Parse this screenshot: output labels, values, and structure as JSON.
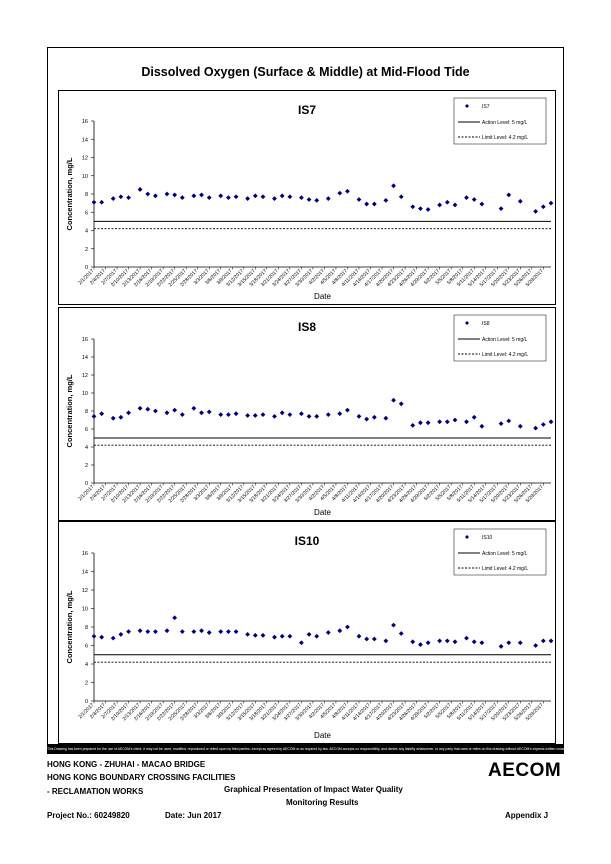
{
  "main_title": "Dissolved Oxygen (Surface & Middle) at Mid-Flood Tide",
  "disclaimer": "This Drawing has been prepared for the use of AECOM's client. It may not be used, modified, reproduced or relied upon by third parties, except as agreed by AECOM or as required by law. AECOM accepts no responsibility, and denies any liability whatsoever, to any party that uses or relies on this drawing without AECOM's express written consent.",
  "footer": {
    "line1": "HONG KONG - ZHUHAI - MACAO BRIDGE",
    "line2": "HONG KONG BOUNDARY CROSSING FACILITIES",
    "line3": "- RECLAMATION WORKS",
    "graph_title_1": "Graphical Presentation of Impact Water Quality",
    "graph_title_2": "Monitoring Results",
    "project": "Project No.: 60249820",
    "date": "Date: Jun 2017",
    "appendix": "Appendix J",
    "logo": "AECOM"
  },
  "colors": {
    "marker": "#00007f",
    "line": "#000000"
  },
  "x_tick_labels": [
    "2/1/2017",
    "2/4/2017",
    "2/7/2017",
    "2/10/2017",
    "2/13/2017",
    "2/16/2017",
    "2/19/2017",
    "2/22/2017",
    "2/25/2017",
    "2/28/2017",
    "3/3/2017",
    "3/6/2017",
    "3/9/2017",
    "3/12/2017",
    "3/15/2017",
    "3/18/2017",
    "3/21/2017",
    "3/24/2017",
    "3/27/2017",
    "3/30/2017",
    "4/2/2017",
    "4/5/2017",
    "4/8/2017",
    "4/11/2017",
    "4/14/2017",
    "4/17/2017",
    "4/20/2017",
    "4/23/2017",
    "4/26/2017",
    "4/29/2017",
    "5/2/2017",
    "5/5/2017",
    "5/8/2017",
    "5/11/2017",
    "5/14/2017",
    "5/17/2017",
    "5/20/2017",
    "5/23/2017",
    "5/26/2017",
    "5/29/2017"
  ],
  "chart_data": [
    {
      "type": "scatter",
      "title": "IS7",
      "xlabel": "Date",
      "ylabel": "Concentration, mg/L",
      "ylim": [
        0,
        16
      ],
      "yticks": [
        0,
        2,
        4,
        6,
        8,
        10,
        12,
        14,
        16
      ],
      "xlim": [
        "2017-02-01",
        "2017-05-31"
      ],
      "grid": false,
      "legend_position": "top-right",
      "legend": [
        "IS7",
        "Action Level: 5 mg/L",
        "Limit Level: 4.2 mg/L"
      ],
      "action_level": 5,
      "limit_level": 4.2,
      "series": [
        {
          "name": "IS7",
          "x": [
            "2017-02-01",
            "2017-02-03",
            "2017-02-06",
            "2017-02-08",
            "2017-02-10",
            "2017-02-13",
            "2017-02-15",
            "2017-02-17",
            "2017-02-20",
            "2017-02-22",
            "2017-02-24",
            "2017-02-27",
            "2017-03-01",
            "2017-03-03",
            "2017-03-06",
            "2017-03-08",
            "2017-03-10",
            "2017-03-13",
            "2017-03-15",
            "2017-03-17",
            "2017-03-20",
            "2017-03-22",
            "2017-03-24",
            "2017-03-27",
            "2017-03-29",
            "2017-03-31",
            "2017-04-03",
            "2017-04-06",
            "2017-04-08",
            "2017-04-11",
            "2017-04-13",
            "2017-04-15",
            "2017-04-18",
            "2017-04-20",
            "2017-04-22",
            "2017-04-25",
            "2017-04-27",
            "2017-04-29",
            "2017-05-02",
            "2017-05-04",
            "2017-05-06",
            "2017-05-09",
            "2017-05-11",
            "2017-05-13",
            "2017-05-18",
            "2017-05-20",
            "2017-05-23",
            "2017-05-27",
            "2017-05-29",
            "2017-05-31"
          ],
          "y": [
            7.1,
            7.1,
            7.5,
            7.7,
            7.6,
            8.5,
            8.0,
            7.8,
            8.0,
            7.9,
            7.6,
            7.8,
            7.9,
            7.6,
            7.8,
            7.6,
            7.7,
            7.5,
            7.8,
            7.7,
            7.5,
            7.8,
            7.7,
            7.6,
            7.4,
            7.3,
            7.5,
            8.1,
            8.3,
            7.4,
            6.9,
            6.9,
            7.3,
            8.9,
            7.7,
            6.6,
            6.4,
            6.3,
            6.8,
            7.1,
            6.8,
            7.6,
            7.4,
            6.9,
            6.4,
            7.9,
            7.2,
            6.1,
            6.6,
            7.0
          ]
        }
      ]
    },
    {
      "type": "scatter",
      "title": "IS8",
      "xlabel": "Date",
      "ylabel": "Concentration, mg/L",
      "ylim": [
        0,
        16
      ],
      "yticks": [
        0,
        2,
        4,
        6,
        8,
        10,
        12,
        14,
        16
      ],
      "xlim": [
        "2017-02-01",
        "2017-05-31"
      ],
      "grid": false,
      "legend_position": "top-right",
      "legend": [
        "IS8",
        "Action Level: 5 mg/L",
        "Limit Level: 4.2 mg/L"
      ],
      "action_level": 5,
      "limit_level": 4.2,
      "series": [
        {
          "name": "IS8",
          "x": [
            "2017-02-01",
            "2017-02-03",
            "2017-02-06",
            "2017-02-08",
            "2017-02-10",
            "2017-02-13",
            "2017-02-15",
            "2017-02-17",
            "2017-02-20",
            "2017-02-22",
            "2017-02-24",
            "2017-02-27",
            "2017-03-01",
            "2017-03-03",
            "2017-03-06",
            "2017-03-08",
            "2017-03-10",
            "2017-03-13",
            "2017-03-15",
            "2017-03-17",
            "2017-03-20",
            "2017-03-22",
            "2017-03-24",
            "2017-03-27",
            "2017-03-29",
            "2017-03-31",
            "2017-04-03",
            "2017-04-06",
            "2017-04-08",
            "2017-04-11",
            "2017-04-13",
            "2017-04-15",
            "2017-04-18",
            "2017-04-20",
            "2017-04-22",
            "2017-04-25",
            "2017-04-27",
            "2017-04-29",
            "2017-05-02",
            "2017-05-04",
            "2017-05-06",
            "2017-05-09",
            "2017-05-11",
            "2017-05-13",
            "2017-05-18",
            "2017-05-20",
            "2017-05-23",
            "2017-05-27",
            "2017-05-29",
            "2017-05-31"
          ],
          "y": [
            7.4,
            7.7,
            7.2,
            7.3,
            7.8,
            8.3,
            8.2,
            8.0,
            7.8,
            8.1,
            7.6,
            8.3,
            7.8,
            7.9,
            7.6,
            7.6,
            7.7,
            7.5,
            7.5,
            7.6,
            7.4,
            7.8,
            7.6,
            7.7,
            7.4,
            7.4,
            7.6,
            7.7,
            8.1,
            7.4,
            7.1,
            7.3,
            7.2,
            9.2,
            8.8,
            6.4,
            6.7,
            6.7,
            6.8,
            6.8,
            7.0,
            6.8,
            7.3,
            6.3,
            6.6,
            6.9,
            6.3,
            6.1,
            6.5,
            6.8
          ]
        }
      ]
    },
    {
      "type": "scatter",
      "title": "IS10",
      "xlabel": "Date",
      "ylabel": "Concentration, mg/L",
      "ylim": [
        0,
        16
      ],
      "yticks": [
        0,
        2,
        4,
        6,
        8,
        10,
        12,
        14,
        16
      ],
      "xlim": [
        "2017-02-01",
        "2017-05-31"
      ],
      "grid": false,
      "legend_position": "top-right",
      "legend": [
        "IS10",
        "Action Level: 5 mg/L",
        "Limit Level: 4.2 mg/L"
      ],
      "action_level": 5,
      "limit_level": 4.2,
      "series": [
        {
          "name": "IS10",
          "x": [
            "2017-02-01",
            "2017-02-03",
            "2017-02-06",
            "2017-02-08",
            "2017-02-10",
            "2017-02-13",
            "2017-02-15",
            "2017-02-17",
            "2017-02-20",
            "2017-02-22",
            "2017-02-24",
            "2017-02-27",
            "2017-03-01",
            "2017-03-03",
            "2017-03-06",
            "2017-03-08",
            "2017-03-10",
            "2017-03-13",
            "2017-03-15",
            "2017-03-17",
            "2017-03-20",
            "2017-03-22",
            "2017-03-24",
            "2017-03-27",
            "2017-03-29",
            "2017-03-31",
            "2017-04-03",
            "2017-04-06",
            "2017-04-08",
            "2017-04-11",
            "2017-04-13",
            "2017-04-15",
            "2017-04-18",
            "2017-04-20",
            "2017-04-22",
            "2017-04-25",
            "2017-04-27",
            "2017-04-29",
            "2017-05-02",
            "2017-05-04",
            "2017-05-06",
            "2017-05-09",
            "2017-05-11",
            "2017-05-13",
            "2017-05-18",
            "2017-05-20",
            "2017-05-23",
            "2017-05-27",
            "2017-05-29",
            "2017-05-31"
          ],
          "y": [
            7.0,
            6.9,
            6.8,
            7.2,
            7.5,
            7.6,
            7.5,
            7.5,
            7.6,
            9.0,
            7.5,
            7.5,
            7.6,
            7.4,
            7.5,
            7.5,
            7.5,
            7.2,
            7.1,
            7.1,
            6.9,
            7.0,
            7.0,
            6.3,
            7.2,
            7.0,
            7.4,
            7.6,
            8.0,
            7.0,
            6.7,
            6.7,
            6.5,
            8.2,
            7.3,
            6.4,
            6.1,
            6.3,
            6.5,
            6.5,
            6.4,
            6.8,
            6.4,
            6.3,
            5.9,
            6.3,
            6.3,
            6.0,
            6.5,
            6.5
          ]
        }
      ]
    }
  ]
}
